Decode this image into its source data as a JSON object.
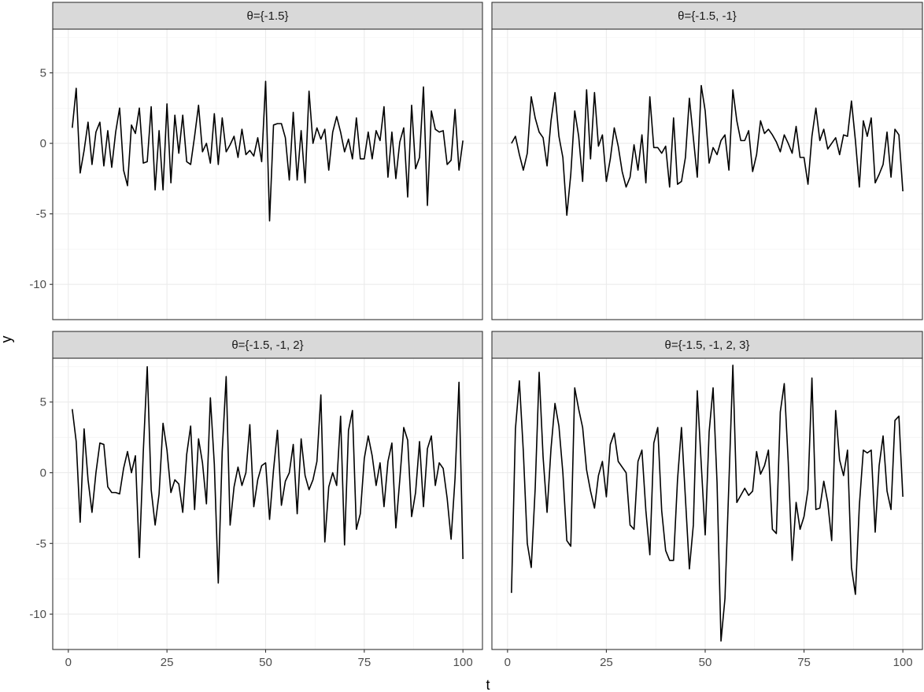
{
  "chart_data": {
    "type": "line",
    "layout": "facet-grid 2x2",
    "xlabel": "t",
    "ylabel": "y",
    "xlim": [
      1,
      100
    ],
    "ylim": [
      -12,
      8
    ],
    "x_ticks": [
      0,
      25,
      50,
      75,
      100
    ],
    "y_ticks": [
      -10,
      -5,
      0,
      5
    ],
    "grid": true,
    "x": [
      1,
      2,
      3,
      4,
      5,
      6,
      7,
      8,
      9,
      10,
      11,
      12,
      13,
      14,
      15,
      16,
      17,
      18,
      19,
      20,
      21,
      22,
      23,
      24,
      25,
      26,
      27,
      28,
      29,
      30,
      31,
      32,
      33,
      34,
      35,
      36,
      37,
      38,
      39,
      40,
      41,
      42,
      43,
      44,
      45,
      46,
      47,
      48,
      49,
      50,
      51,
      52,
      53,
      54,
      55,
      56,
      57,
      58,
      59,
      60,
      61,
      62,
      63,
      64,
      65,
      66,
      67,
      68,
      69,
      70,
      71,
      72,
      73,
      74,
      75,
      76,
      77,
      78,
      79,
      80,
      81,
      82,
      83,
      84,
      85,
      86,
      87,
      88,
      89,
      90,
      91,
      92,
      93,
      94,
      95,
      96,
      97,
      98,
      99,
      100
    ],
    "panels": [
      {
        "strip": "θ={-1.5}",
        "values": [
          1.1,
          3.9,
          -2.1,
          -0.5,
          1.5,
          -1.5,
          0.8,
          1.5,
          -1.6,
          0.9,
          -1.7,
          0.8,
          2.5,
          -1.9,
          -3.0,
          1.3,
          0.7,
          2.5,
          -1.4,
          -1.3,
          2.6,
          -3.3,
          0.9,
          -3.3,
          2.8,
          -2.8,
          2.0,
          -0.7,
          2.0,
          -1.3,
          -1.5,
          0.5,
          2.7,
          -0.6,
          0.0,
          -1.4,
          2.1,
          -1.5,
          1.8,
          -0.6,
          -0.1,
          0.5,
          -1.0,
          1.0,
          -0.8,
          -0.5,
          -0.9,
          0.4,
          -1.3,
          4.4,
          -5.5,
          1.3,
          1.4,
          1.4,
          0.4,
          -2.6,
          2.2,
          -2.6,
          0.9,
          -2.8,
          3.7,
          0.0,
          1.1,
          0.3,
          1.0,
          -1.9,
          0.8,
          1.9,
          0.8,
          -0.6,
          0.3,
          -1.1,
          1.8,
          -1.1,
          -1.1,
          0.8,
          -1.1,
          0.9,
          0.2,
          2.6,
          -2.4,
          0.8,
          -2.5,
          0.1,
          1.1,
          -3.8,
          2.7,
          -1.8,
          -1.0,
          4.0,
          -4.4,
          2.3,
          1.0,
          0.8,
          0.9,
          -1.5,
          -1.2,
          2.4,
          -1.9,
          0.2
        ]
      },
      {
        "strip": "θ={-1.5, -1}",
        "values": [
          0.0,
          0.5,
          -0.8,
          -1.9,
          -0.7,
          3.3,
          1.8,
          0.8,
          0.4,
          -1.6,
          1.6,
          3.6,
          0.5,
          -1.0,
          -5.1,
          -2.2,
          2.3,
          0.5,
          -2.7,
          3.8,
          -1.1,
          3.6,
          -0.2,
          0.6,
          -2.7,
          -1.1,
          1.1,
          -0.2,
          -2.0,
          -3.1,
          -2.4,
          -0.1,
          -1.9,
          0.6,
          -2.8,
          3.3,
          -0.3,
          -0.3,
          -0.7,
          -0.2,
          -3.1,
          1.8,
          -2.9,
          -2.7,
          -1.0,
          3.2,
          0.4,
          -2.4,
          4.1,
          2.3,
          -1.4,
          -0.3,
          -0.8,
          0.2,
          0.6,
          -1.9,
          3.8,
          1.6,
          0.2,
          0.2,
          0.9,
          -2.0,
          -0.8,
          1.6,
          0.7,
          1.0,
          0.6,
          0.1,
          -0.6,
          0.6,
          0.0,
          -0.7,
          1.2,
          -1.0,
          -1.0,
          -2.9,
          0.5,
          2.5,
          0.2,
          1.0,
          -0.4,
          0.0,
          0.4,
          -0.8,
          0.6,
          0.5,
          3.0,
          0.2,
          -3.1,
          1.6,
          0.5,
          1.8,
          -2.8,
          -2.2,
          -1.5,
          0.8,
          -2.4,
          1.0,
          0.6,
          -3.4
        ]
      },
      {
        "strip": "θ={-1.5, -1, 2}",
        "values": [
          4.5,
          2.2,
          -3.5,
          3.1,
          -0.5,
          -2.8,
          0.0,
          2.1,
          2.0,
          -1.0,
          -1.4,
          -1.4,
          -1.5,
          0.3,
          1.5,
          0.0,
          1.2,
          -6.0,
          1.5,
          7.5,
          -1.2,
          -3.7,
          -1.5,
          3.5,
          1.6,
          -1.4,
          -0.5,
          -0.8,
          -2.8,
          1.3,
          3.3,
          -2.6,
          2.4,
          0.7,
          -2.2,
          5.3,
          0.6,
          -7.8,
          1.5,
          6.8,
          -3.7,
          -1.0,
          0.4,
          -0.9,
          0.0,
          3.4,
          -2.4,
          -0.5,
          0.5,
          0.7,
          -3.3,
          0.2,
          3.0,
          -2.3,
          -0.6,
          0.0,
          2.0,
          -2.9,
          2.4,
          -0.2,
          -1.2,
          -0.5,
          0.8,
          5.5,
          -4.9,
          -1.0,
          0.0,
          -0.9,
          4.0,
          -5.1,
          3.0,
          4.4,
          -4.0,
          -2.9,
          1.0,
          2.6,
          1.2,
          -0.9,
          0.7,
          -2.4,
          0.8,
          2.1,
          -3.9,
          -0.5,
          3.2,
          2.3,
          -3.1,
          -1.4,
          2.2,
          -2.4,
          1.7,
          2.6,
          -0.9,
          0.7,
          0.3,
          -1.8,
          -4.7,
          -0.4,
          6.4,
          -6.1
        ]
      },
      {
        "strip": "θ={-1.5, -1, 2, 3}",
        "values": [
          -8.5,
          3.1,
          6.5,
          1.5,
          -5.0,
          -6.7,
          -1.1,
          7.1,
          1.1,
          -2.8,
          1.7,
          4.9,
          3.3,
          0.0,
          -4.8,
          -5.2,
          6.0,
          4.5,
          3.2,
          0.2,
          -1.3,
          -2.5,
          -0.2,
          0.8,
          -1.7,
          2.0,
          2.8,
          0.8,
          0.4,
          0.0,
          -3.7,
          -4.0,
          0.8,
          1.6,
          -2.7,
          -5.8,
          2.1,
          3.2,
          -2.7,
          -5.5,
          -6.2,
          -6.2,
          -0.5,
          3.2,
          -1.8,
          -6.8,
          -3.7,
          5.8,
          0.6,
          -4.4,
          2.9,
          6.0,
          -0.7,
          -11.9,
          -8.9,
          -0.7,
          7.6,
          -2.1,
          -1.6,
          -1.1,
          -1.6,
          -1.3,
          1.5,
          -0.1,
          0.5,
          1.6,
          -4.0,
          -4.3,
          4.3,
          6.3,
          0.8,
          -6.2,
          -2.1,
          -4.0,
          -3.1,
          -1.2,
          6.7,
          -2.6,
          -2.5,
          -0.6,
          -2.1,
          -4.8,
          4.4,
          0.9,
          -0.2,
          1.6,
          -6.7,
          -8.6,
          -2.3,
          1.6,
          1.4,
          1.6,
          -4.2,
          0.5,
          2.6,
          -1.3,
          -2.6,
          3.7,
          4.0,
          -1.7
        ]
      }
    ]
  }
}
